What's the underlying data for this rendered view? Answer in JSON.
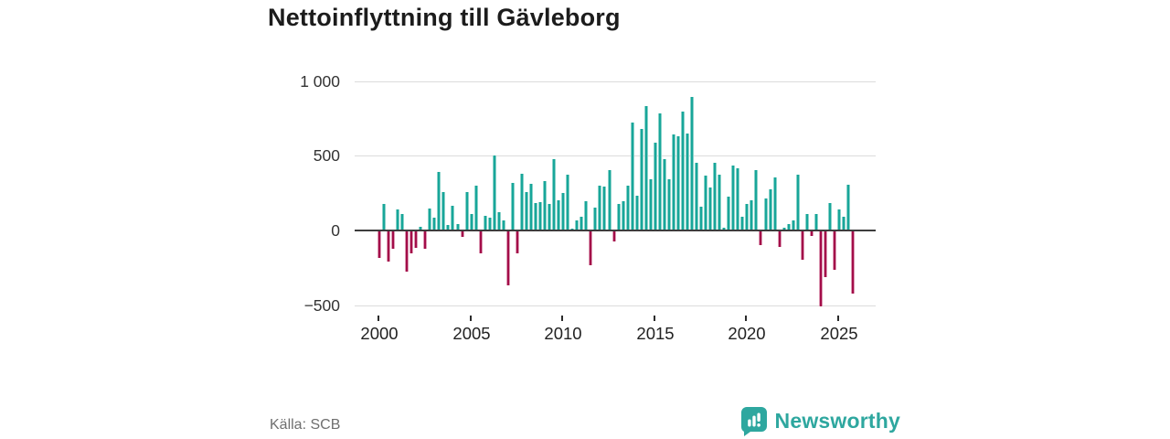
{
  "title": "Nettoinflyttning till Gävleborg",
  "source": "Källa: SCB",
  "brand": {
    "name": "Newsworthy",
    "color": "#2ea79f"
  },
  "colors": {
    "positive": "#18a69a",
    "negative": "#a30d49",
    "grid": "#dcdcdc",
    "zero_line": "#3d3d3d",
    "axis_text": "#333333"
  },
  "chart_data": {
    "type": "bar",
    "title": "Nettoinflyttning till Gävleborg",
    "frequency": "quarterly",
    "start_year": 2000,
    "start_quarter": 1,
    "ylim": [
      -560,
      1050
    ],
    "grid": true,
    "y_ticks": [
      1000,
      500,
      0,
      -500
    ],
    "y_tick_labels": [
      "1 000",
      "500",
      "0",
      "−500"
    ],
    "x_tick_years": [
      2000,
      2005,
      2010,
      2015,
      2020,
      2025
    ],
    "x_tick_labels": [
      "2000",
      "2005",
      "2010",
      "2015",
      "2020",
      "2025"
    ],
    "values": [
      -185,
      175,
      -210,
      -120,
      140,
      110,
      -275,
      -155,
      -115,
      25,
      -120,
      145,
      85,
      390,
      260,
      35,
      165,
      40,
      -40,
      255,
      110,
      300,
      -155,
      100,
      85,
      500,
      120,
      70,
      -365,
      320,
      -150,
      380,
      255,
      310,
      185,
      190,
      330,
      175,
      475,
      205,
      250,
      375,
      10,
      65,
      90,
      195,
      -235,
      150,
      300,
      295,
      405,
      -75,
      175,
      195,
      300,
      720,
      235,
      680,
      835,
      345,
      590,
      785,
      480,
      345,
      640,
      630,
      795,
      650,
      895,
      455,
      160,
      370,
      285,
      450,
      375,
      20,
      225,
      435,
      415,
      90,
      175,
      205,
      405,
      -100,
      215,
      275,
      355,
      -110,
      20,
      45,
      70,
      375,
      -195,
      110,
      -35,
      110,
      -510,
      -315,
      185,
      -265,
      140,
      90,
      305,
      -425
    ]
  }
}
